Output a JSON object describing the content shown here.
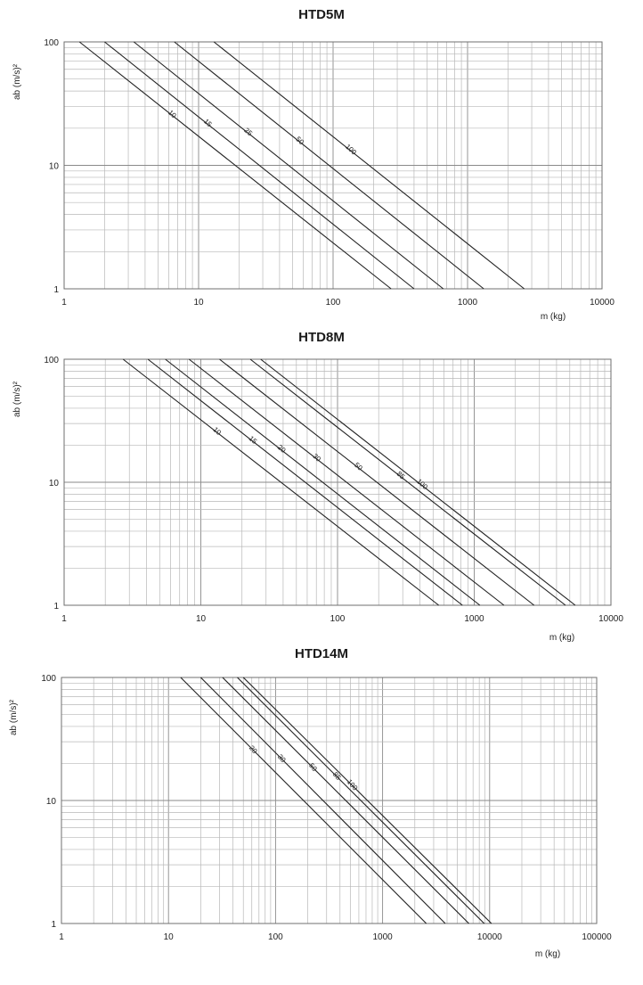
{
  "chart_data": [
    {
      "type": "line",
      "title": "HTD5M",
      "xlabel": "m (kg)",
      "ylabel": "ab (m/s)²",
      "x_scale": "log",
      "y_scale": "log",
      "xlim": [
        1,
        10000
      ],
      "ylim": [
        1,
        100
      ],
      "x_ticks": [
        "1",
        "10",
        "100",
        "1000",
        "10000"
      ],
      "y_ticks": [
        "1",
        "10",
        "100"
      ],
      "grid": true,
      "series": [
        {
          "name": "10",
          "points": [
            [
              1.3,
              100
            ],
            [
              270,
              1
            ]
          ]
        },
        {
          "name": "15",
          "points": [
            [
              2,
              100
            ],
            [
              400,
              1
            ]
          ]
        },
        {
          "name": "25",
          "points": [
            [
              3.3,
              100
            ],
            [
              660,
              1
            ]
          ]
        },
        {
          "name": "50",
          "points": [
            [
              6.6,
              100
            ],
            [
              1320,
              1
            ]
          ]
        },
        {
          "name": "100",
          "points": [
            [
              13,
              100
            ],
            [
              2640,
              1
            ]
          ]
        }
      ]
    },
    {
      "type": "line",
      "title": "HTD8M",
      "xlabel": "m (kg)",
      "ylabel": "ab (m/s)²",
      "x_scale": "log",
      "y_scale": "log",
      "xlim": [
        1,
        10000
      ],
      "ylim": [
        1,
        100
      ],
      "x_ticks": [
        "1",
        "10",
        "100",
        "1000",
        "10000"
      ],
      "y_ticks": [
        "1",
        "10",
        "100"
      ],
      "grid": true,
      "series": [
        {
          "name": "10",
          "points": [
            [
              2.7,
              100
            ],
            [
              550,
              1
            ]
          ]
        },
        {
          "name": "15",
          "points": [
            [
              4.1,
              100
            ],
            [
              820,
              1
            ]
          ]
        },
        {
          "name": "20",
          "points": [
            [
              5.5,
              100
            ],
            [
              1100,
              1
            ]
          ]
        },
        {
          "name": "30",
          "points": [
            [
              8.2,
              100
            ],
            [
              1650,
              1
            ]
          ]
        },
        {
          "name": "50",
          "points": [
            [
              13.7,
              100
            ],
            [
              2740,
              1
            ]
          ]
        },
        {
          "name": "85",
          "points": [
            [
              23,
              100
            ],
            [
              4650,
              1
            ]
          ]
        },
        {
          "name": "100",
          "points": [
            [
              27.4,
              100
            ],
            [
              5480,
              1
            ]
          ]
        }
      ]
    },
    {
      "type": "line",
      "title": "HTD14M",
      "xlabel": "m (kg)",
      "ylabel": "ab (m/s)²",
      "x_scale": "log",
      "y_scale": "log",
      "xlim": [
        1,
        100000
      ],
      "ylim": [
        1,
        100
      ],
      "x_ticks": [
        "1",
        "10",
        "100",
        "1000",
        "10000",
        "100000"
      ],
      "y_ticks": [
        "1",
        "10",
        "100"
      ],
      "grid": true,
      "series": [
        {
          "name": "20",
          "points": [
            [
              13,
              100
            ],
            [
              2560,
              1
            ]
          ]
        },
        {
          "name": "30",
          "points": [
            [
              20,
              100
            ],
            [
              3850,
              1
            ]
          ]
        },
        {
          "name": "50",
          "points": [
            [
              32,
              100
            ],
            [
              6400,
              1
            ]
          ]
        },
        {
          "name": "85",
          "points": [
            [
              44,
              100
            ],
            [
              8900,
              1
            ]
          ]
        },
        {
          "name": "100",
          "points": [
            [
              50,
              100
            ],
            [
              10400,
              1
            ]
          ]
        }
      ]
    }
  ]
}
